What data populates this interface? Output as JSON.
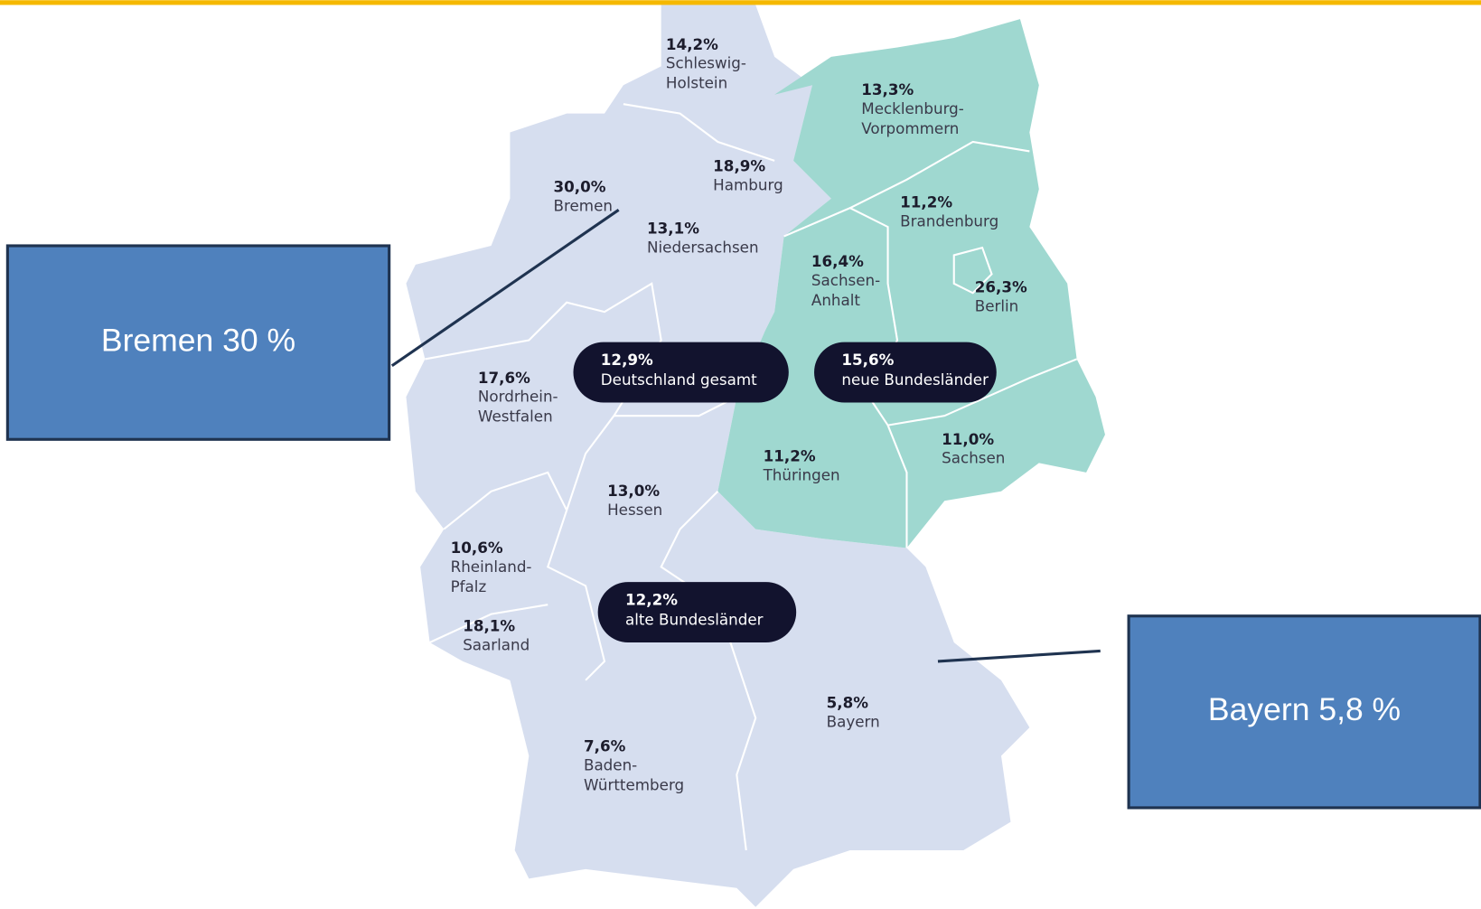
{
  "regions": [
    {
      "value": "14,2%",
      "name": [
        "Schleswig-",
        "Holstein"
      ]
    },
    {
      "value": "13,3%",
      "name": [
        "Mecklenburg-",
        "Vorpommern"
      ]
    },
    {
      "value": "18,9%",
      "name": [
        "Hamburg"
      ]
    },
    {
      "value": "30,0%",
      "name": [
        "Bremen"
      ]
    },
    {
      "value": "11,2%",
      "name": [
        "Brandenburg"
      ]
    },
    {
      "value": "13,1%",
      "name": [
        "Niedersachsen"
      ]
    },
    {
      "value": "16,4%",
      "name": [
        "Sachsen-",
        "Anhalt"
      ]
    },
    {
      "value": "26,3%",
      "name": [
        "Berlin"
      ]
    },
    {
      "value": "17,6%",
      "name": [
        "Nordrhein-",
        "Westfalen"
      ]
    },
    {
      "value": "11,2%",
      "name": [
        "Thüringen"
      ]
    },
    {
      "value": "11,0%",
      "name": [
        "Sachsen"
      ]
    },
    {
      "value": "13,0%",
      "name": [
        "Hessen"
      ]
    },
    {
      "value": "10,6%",
      "name": [
        "Rheinland-",
        "Pfalz"
      ]
    },
    {
      "value": "18,1%",
      "name": [
        "Saarland"
      ]
    },
    {
      "value": "5,8%",
      "name": [
        "Bayern"
      ]
    },
    {
      "value": "7,6%",
      "name": [
        "Baden-",
        "Württemberg"
      ]
    }
  ],
  "summaries": [
    {
      "value": "12,9%",
      "label": "Deutschland gesamt"
    },
    {
      "value": "15,6%",
      "label": "neue Bundesländer"
    },
    {
      "value": "12,2%",
      "label": "alte Bundesländer"
    }
  ],
  "callouts": [
    {
      "text": "Bremen 30 %"
    },
    {
      "text": "Bayern 5,8 %"
    }
  ]
}
